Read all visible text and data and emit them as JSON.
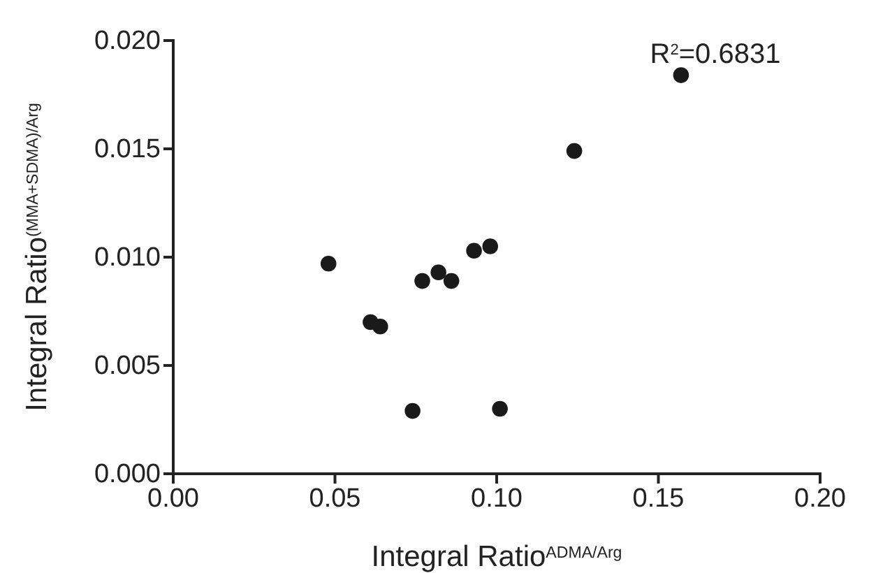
{
  "chart_data": {
    "type": "scatter",
    "xlabel": "Integral Ratio$^{ADMA/Arg}$",
    "ylabel": "Integral Ratio$^{(MMA+SDMA)/Arg}$",
    "x": [
      0.157,
      0.124,
      0.048,
      0.061,
      0.064,
      0.077,
      0.082,
      0.086,
      0.093,
      0.098,
      0.074,
      0.101
    ],
    "series": [
      {
        "color": "#1a1a1a",
        "values": [
          0.0184,
          0.0149,
          0.0097,
          0.007,
          0.0068,
          0.0089,
          0.0093,
          0.0089,
          0.0103,
          0.0105,
          0.0029,
          0.003
        ]
      }
    ],
    "xlim": [
      0,
      0.2
    ],
    "xticks": [
      {
        "value": 0,
        "label": "0.00"
      },
      {
        "value": 0.05,
        "label": "0.05"
      },
      {
        "value": 0.1,
        "label": "0.10"
      },
      {
        "value": 0.15,
        "label": "0.15"
      },
      {
        "value": 0.2,
        "label": "0.20"
      }
    ],
    "ylim": [
      0,
      0.02
    ],
    "yticks": [
      {
        "value": 0,
        "label": "0.000"
      },
      {
        "value": 0.005,
        "label": "0.005"
      },
      {
        "value": 0.01,
        "label": "0.010"
      },
      {
        "value": 0.015,
        "label": "0.015"
      },
      {
        "value": 0.02,
        "label": "0.020"
      }
    ],
    "annotations": [
      "R$^{2}$=0.6831"
    ],
    "marker": "circle",
    "grid": false
  }
}
